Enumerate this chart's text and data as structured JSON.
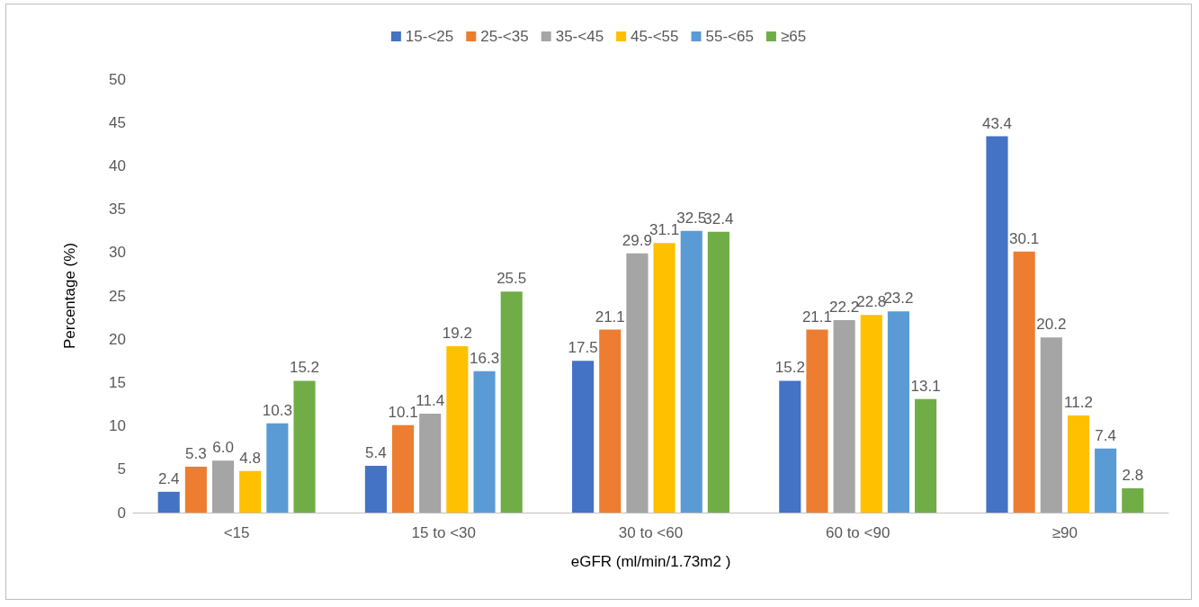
{
  "chart_data": {
    "type": "bar",
    "xlabel": "eGFR (ml/min/1.73m2 )",
    "ylabel": "Percentage (%)",
    "categories": [
      "<15",
      "15 to <30",
      "30 to <60",
      "60 to <90",
      "≥90"
    ],
    "series": [
      {
        "name": "15-<25",
        "color": "#4472c4",
        "values": [
          2.4,
          5.4,
          17.5,
          15.2,
          43.4
        ],
        "value_labels": [
          "2.4",
          "5.4",
          "17.5",
          "15.2",
          "43.4"
        ]
      },
      {
        "name": "25-<35",
        "color": "#ed7d31",
        "values": [
          5.3,
          10.1,
          21.1,
          21.1,
          30.1
        ],
        "value_labels": [
          "5.3",
          "10.1",
          "21.1",
          "21.1",
          "30.1"
        ]
      },
      {
        "name": "35-<45",
        "color": "#a5a5a5",
        "values": [
          6.0,
          11.4,
          29.9,
          22.2,
          20.2
        ],
        "value_labels": [
          "6.0",
          "11.4",
          "29.9",
          "22.2",
          "20.2"
        ]
      },
      {
        "name": "45-<55",
        "color": "#ffc000",
        "values": [
          4.8,
          19.2,
          31.1,
          22.8,
          11.2
        ],
        "value_labels": [
          "4.8",
          "19.2",
          "31.1",
          "22.8",
          "11.2"
        ]
      },
      {
        "name": "55-<65",
        "color": "#5b9bd5",
        "values": [
          10.3,
          16.3,
          32.5,
          23.2,
          7.4
        ],
        "value_labels": [
          "10.3",
          "16.3",
          "32.5",
          "23.2",
          "7.4"
        ]
      },
      {
        "name": "≥65",
        "color": "#70ad47",
        "values": [
          15.2,
          25.5,
          32.4,
          13.1,
          2.8
        ],
        "value_labels": [
          "15.2",
          "25.5",
          "32.4",
          "13.1",
          "2.8"
        ]
      }
    ],
    "ylim": [
      0,
      50
    ],
    "yticks": [
      0,
      5,
      10,
      15,
      20,
      25,
      30,
      35,
      40,
      45,
      50
    ],
    "grid": false,
    "legend": "top"
  }
}
